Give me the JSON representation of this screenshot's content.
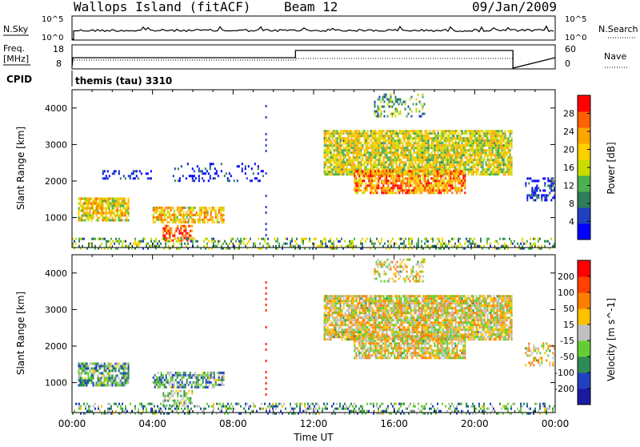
{
  "header": {
    "station": "Wallops Island (fitACF)",
    "beam": "Beam 12",
    "date": "09/Jan/2009"
  },
  "top_panels": {
    "nsky_label": "N.Sky",
    "nsearch_label": "N.Search",
    "freq_label_line1": "Freq.",
    "freq_label_line2": "[MHz]",
    "nave_label": "Nave",
    "cpid_label": "CPID",
    "cpid_value": "themis (tau) 3310",
    "nsky_ticks": [
      "10^5",
      "10^0"
    ],
    "nsearch_ticks": [
      "10^5",
      "10^0"
    ],
    "freq_ticks": [
      "18",
      "8"
    ],
    "nave_ticks": [
      "60",
      "0"
    ]
  },
  "chart_data": [
    {
      "type": "heatmap",
      "panel": "power",
      "xlabel": "Time UT",
      "ylabel": "Slant Range [km]",
      "colorbar_label": "Power [dB]",
      "colorbar_ticks": [
        "28",
        "24",
        "20",
        "16",
        "12",
        "8",
        "4"
      ],
      "colorbar_colors": [
        "#0000ff",
        "#2040c0",
        "#2e7d5b",
        "#4caf50",
        "#c8dc00",
        "#ffd000",
        "#ffa500",
        "#ff6000",
        "#ff0000"
      ],
      "x_ticks": [
        "00:00",
        "04:00",
        "08:00",
        "12:00",
        "16:00",
        "20:00",
        "00:00"
      ],
      "y_ticks": [
        "1000",
        "2000",
        "3000",
        "4000"
      ],
      "xlim_hours": [
        0,
        24
      ],
      "ylim_km": [
        180,
        4500
      ],
      "scatter_regions": [
        {
          "t0": 0.3,
          "t1": 2.8,
          "r0": 900,
          "r1": 1550,
          "level": 0.6,
          "density": 0.8
        },
        {
          "t0": 4.0,
          "t1": 7.5,
          "r0": 850,
          "r1": 1300,
          "level": 0.65,
          "density": 0.7
        },
        {
          "t0": 4.5,
          "t1": 6.0,
          "r0": 350,
          "r1": 800,
          "level": 0.85,
          "density": 0.6
        },
        {
          "t0": 12.5,
          "t1": 21.8,
          "r0": 2200,
          "r1": 3400,
          "level": 0.55,
          "density": 0.85
        },
        {
          "t0": 14.0,
          "t1": 19.5,
          "r0": 1700,
          "r1": 2300,
          "level": 0.75,
          "density": 0.75
        },
        {
          "t0": 15.0,
          "t1": 17.5,
          "r0": 3800,
          "r1": 4400,
          "level": 0.35,
          "density": 0.35
        },
        {
          "t0": 1.5,
          "t1": 4.0,
          "r0": 2050,
          "r1": 2300,
          "level": 0.05,
          "density": 0.3
        },
        {
          "t0": 5.0,
          "t1": 9.5,
          "r0": 2000,
          "r1": 2500,
          "level": 0.08,
          "density": 0.2
        },
        {
          "t0": 22.5,
          "t1": 24.0,
          "r0": 1500,
          "r1": 2100,
          "level": 0.1,
          "density": 0.4
        },
        {
          "t0": 0.0,
          "t1": 24.0,
          "r0": 180,
          "r1": 450,
          "level": 0.4,
          "density": 0.35
        }
      ]
    },
    {
      "type": "heatmap",
      "panel": "velocity",
      "xlabel": "Time UT",
      "ylabel": "Slant Range [km]",
      "colorbar_label": "Velocity [m s^-1]",
      "colorbar_ticks": [
        "200",
        "100",
        "50",
        "15",
        "-15",
        "-50",
        "-100",
        "-200"
      ],
      "colorbar_colors": [
        "#1a1aa0",
        "#2040c0",
        "#2e8b57",
        "#66cc33",
        "#c0c0c0",
        "#ffc000",
        "#ff8000",
        "#ff4000",
        "#ff0000"
      ],
      "x_ticks": [
        "00:00",
        "04:00",
        "08:00",
        "12:00",
        "16:00",
        "20:00",
        "00:00"
      ],
      "y_ticks": [
        "1000",
        "2000",
        "3000",
        "4000"
      ],
      "xlim_hours": [
        0,
        24
      ],
      "ylim_km": [
        180,
        4500
      ],
      "scatter_regions": [
        {
          "t0": 0.3,
          "t1": 2.8,
          "r0": 900,
          "r1": 1550,
          "level": 0.35,
          "density": 0.75
        },
        {
          "t0": 4.0,
          "t1": 7.5,
          "r0": 850,
          "r1": 1300,
          "level": 0.35,
          "density": 0.65
        },
        {
          "t0": 4.5,
          "t1": 6.0,
          "r0": 350,
          "r1": 800,
          "level": 0.45,
          "density": 0.5
        },
        {
          "t0": 12.5,
          "t1": 21.8,
          "r0": 2200,
          "r1": 3400,
          "level": 0.55,
          "density": 0.85
        },
        {
          "t0": 14.0,
          "t1": 19.5,
          "r0": 1700,
          "r1": 2300,
          "level": 0.55,
          "density": 0.75
        },
        {
          "t0": 15.0,
          "t1": 17.5,
          "r0": 3800,
          "r1": 4400,
          "level": 0.55,
          "density": 0.35
        },
        {
          "t0": 22.5,
          "t1": 24.0,
          "r0": 1500,
          "r1": 2100,
          "level": 0.55,
          "density": 0.4
        },
        {
          "t0": 0.0,
          "t1": 24.0,
          "r0": 180,
          "r1": 450,
          "level": 0.35,
          "density": 0.35
        }
      ]
    }
  ]
}
